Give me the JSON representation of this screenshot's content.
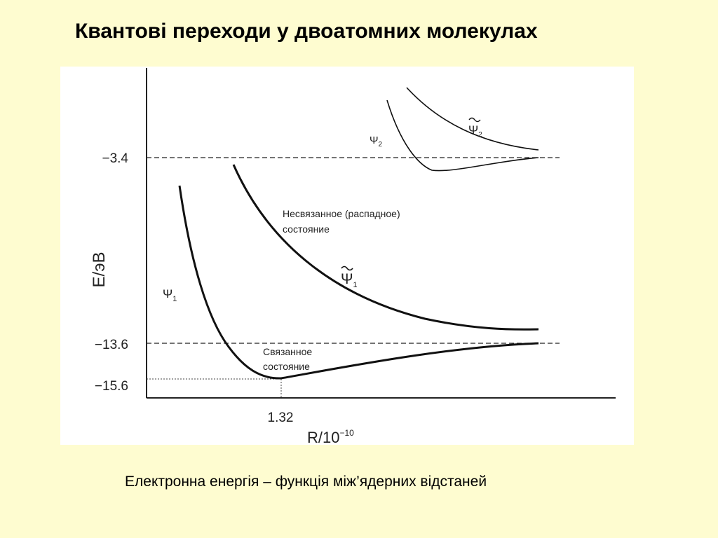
{
  "slide": {
    "title": "Квантові переходи у двоатомних молекулах",
    "caption": "Електронна енергія – функція між’ядерних відстаней"
  },
  "chart_data": {
    "type": "line",
    "ylabel": "E/эВ",
    "xlabel": "R/10",
    "xlabel_exp": "−10",
    "x_ticks": [
      {
        "label": "1.32",
        "value": 1.32
      }
    ],
    "y_ticks": [
      {
        "label": "−3.4",
        "value": -3.4
      },
      {
        "label": "−13.6",
        "value": -13.6
      },
      {
        "label": "−15.6",
        "value": -15.6
      }
    ],
    "grid": false,
    "curves": [
      {
        "id": "psi1",
        "label": "Ψ",
        "sub": "1",
        "tilde": false
      },
      {
        "id": "psi1t",
        "label": "Ψ",
        "sub": "1",
        "tilde": true
      },
      {
        "id": "psi2",
        "label": "Ψ",
        "sub": "2",
        "tilde": false
      },
      {
        "id": "psi2t",
        "label": "Ψ",
        "sub": "2",
        "tilde": true
      }
    ],
    "annotations": {
      "unbound_line1": "Несвязанное (распадное)",
      "unbound_line2": "состояние",
      "bound_line1": "Связанное",
      "bound_line2": "состояние"
    },
    "colors": {
      "curve": "#111111",
      "axis": "#222222"
    }
  }
}
